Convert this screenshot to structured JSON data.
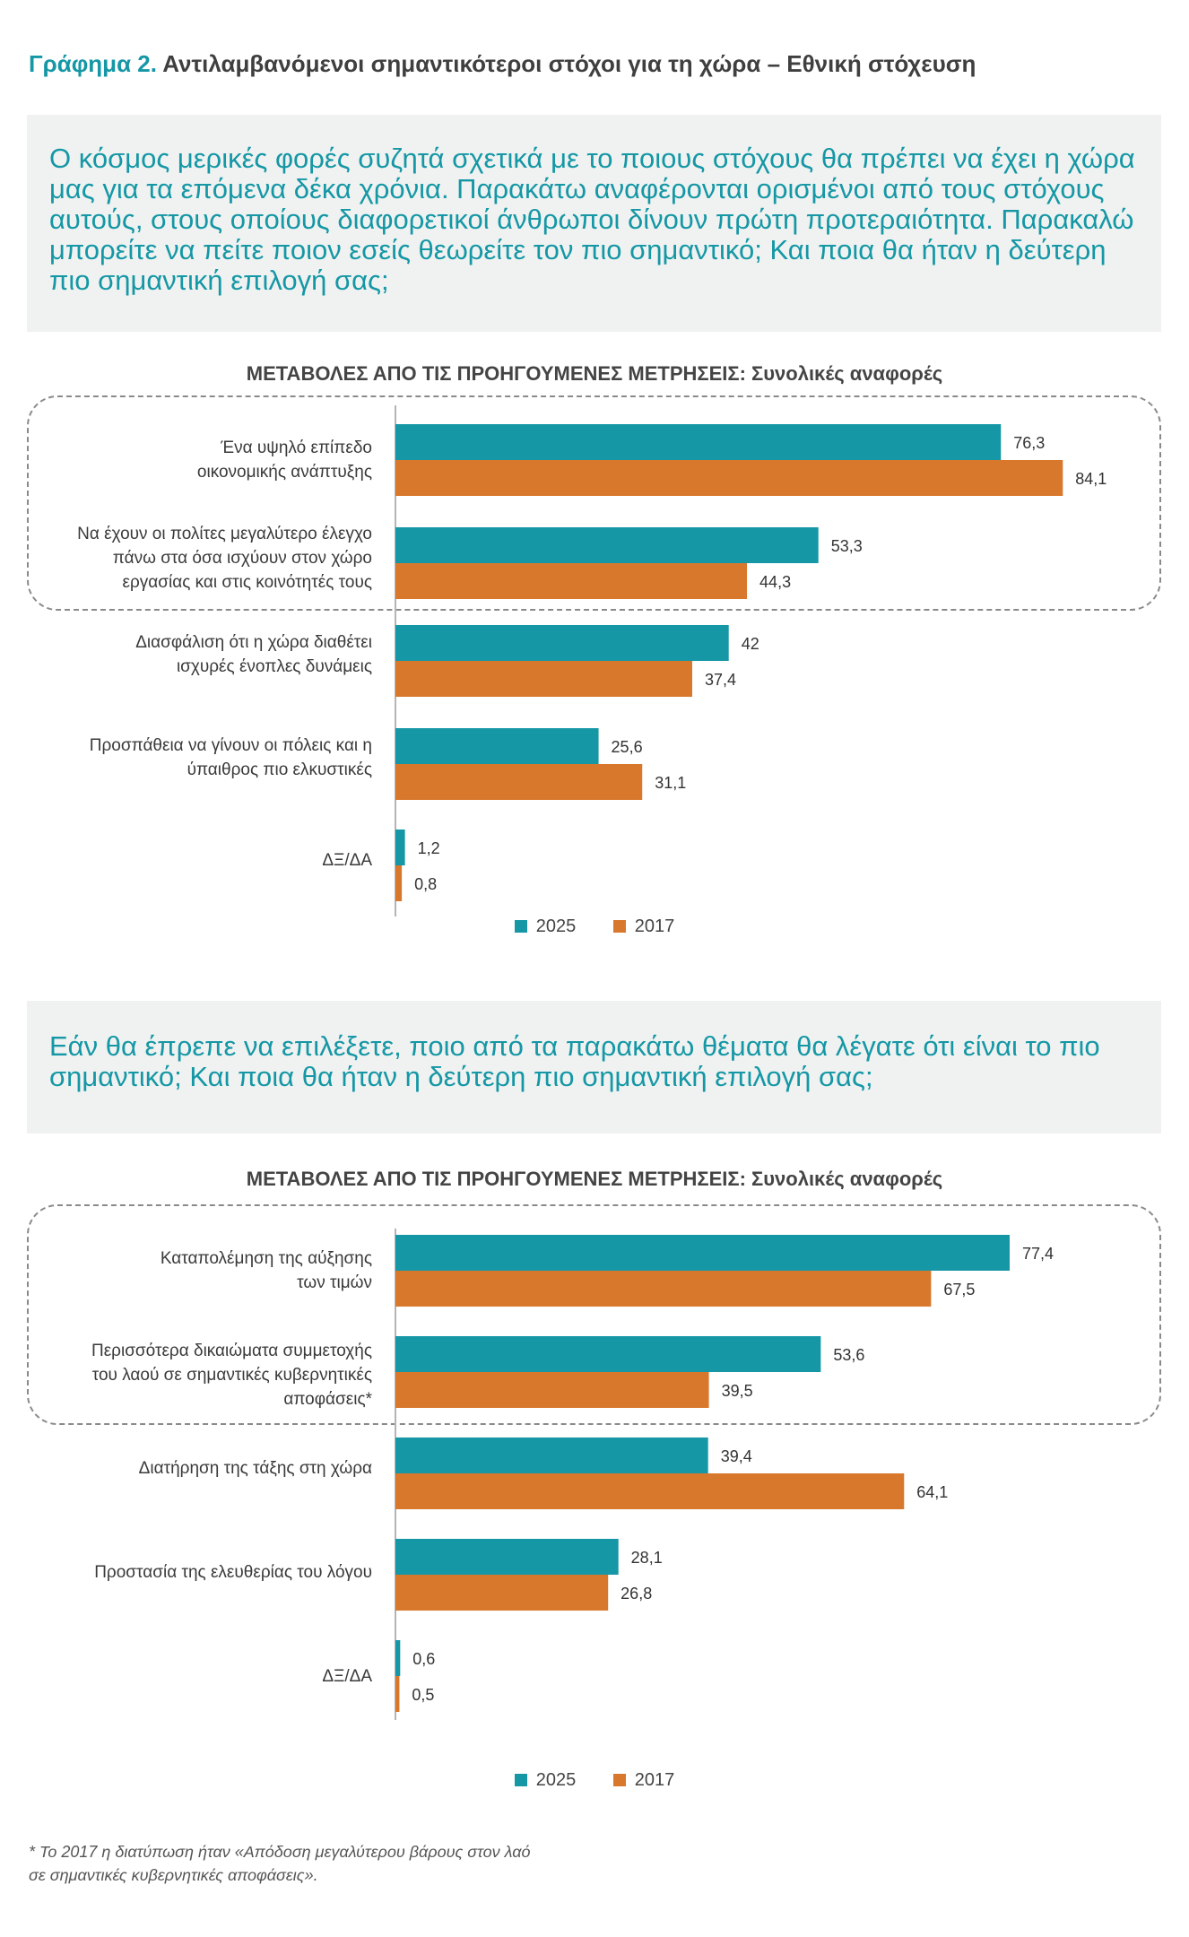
{
  "header": {
    "prefix": "Γράφημα 2.",
    "title": "Αντιλαμβανόμενοι σημαντικότεροι στόχοι για τη χώρα – Εθνική στόχευση"
  },
  "colors": {
    "y2025": "#1597a5",
    "y2017": "#d8782d",
    "axis": "#b5b5b5"
  },
  "legend": {
    "a": "2025",
    "b": "2017"
  },
  "sections": [
    {
      "question": "Ο κόσμος μερικές φορές συζητά σχετικά με το ποιους στόχους θα πρέπει να έχει η χώρα μας για τα επόμενα δέκα χρόνια. Παρακάτω αναφέρονται ορισμένοι από τους στόχους αυτούς, στους οποίους διαφορετικοί άνθρωποι δίνουν πρώτη προτεραιότητα. Παρακαλώ μπορείτε να πείτε ποιον εσείς θεωρείτε τον πιο σημαντικό; Και ποια θα ήταν η δεύτερη πιο σημαντική επιλογή σας;",
      "subtitle": "ΜΕΤΑΒΟΛΕΣ ΑΠΟ ΤΙΣ ΠΡΟΗΓΟΥΜΕΝΕΣ ΜΕΤΡΗΣΕΙΣ: Συνολικές αναφορές",
      "categories": [
        "Ένα υψηλό επίπεδο οικονομικής ανάπτυξης",
        "Να έχουν οι πολίτες μεγαλύτερο έλεγχο πάνω στα όσα ισχύουν στον χώρο εργασίας και στις κοινότητές τους",
        "Διασφάλιση ότι η χώρα διαθέτει ισχυρές ένοπλες δυνάμεις",
        "Προσπάθεια να γίνουν οι πόλεις και η ύπαιθρος πιο ελκυστικές",
        "ΔΞ/ΔΑ"
      ],
      "label_lines": [
        [
          "Ένα υψηλό επίπεδο",
          "οικονομικής ανάπτυξης"
        ],
        [
          "Να έχουν οι πολίτες μεγαλύτερο έλεγχο",
          "πάνω στα όσα ισχύουν στον χώρο",
          "εργασίας και στις κοινότητές τους"
        ],
        [
          "Διασφάλιση ότι η χώρα διαθέτει",
          "ισχυρές ένοπλες δυνάμεις"
        ],
        [
          "Προσπάθεια να γίνουν οι πόλεις και η",
          "ύπαιθρος πιο ελκυστικές"
        ],
        [
          "ΔΞ/ΔΑ"
        ]
      ],
      "value_labels_2025": [
        "76,3",
        "53,3",
        "42",
        "25,6",
        "1,2"
      ],
      "value_labels_2017": [
        "84,1",
        "44,3",
        "37,4",
        "31,1",
        "0,8"
      ]
    },
    {
      "question": "Εάν θα έπρεπε να επιλέξετε, ποιο από τα παρακάτω θέματα θα λέγατε ότι είναι το πιο σημαντικό; Και ποια θα ήταν η δεύτερη πιο σημαντική επιλογή σας;",
      "subtitle": "ΜΕΤΑΒΟΛΕΣ ΑΠΟ ΤΙΣ ΠΡΟΗΓΟΥΜΕΝΕΣ ΜΕΤΡΗΣΕΙΣ: Συνολικές αναφορές",
      "categories": [
        "Καταπολέμηση της αύξησης των τιμών",
        "Περισσότερα δικαιώματα συμμετοχής του λαού σε σημαντικές κυβερνητικές αποφάσεις*",
        "Διατήρηση της τάξης στη χώρα",
        "Προστασία της ελευθερίας του λόγου",
        "ΔΞ/ΔΑ"
      ],
      "label_lines": [
        [
          "Καταπολέμηση της αύξησης",
          "των τιμών"
        ],
        [
          "Περισσότερα δικαιώματα συμμετοχής",
          "του λαού σε σημαντικές κυβερνητικές",
          "αποφάσεις*"
        ],
        [
          "Διατήρηση της τάξης στη χώρα"
        ],
        [
          "Προστασία της ελευθερίας του λόγου"
        ],
        [
          "ΔΞ/ΔΑ"
        ]
      ],
      "value_labels_2025": [
        "77,4",
        "53,6",
        "39,4",
        "28,1",
        "0,6"
      ],
      "value_labels_2017": [
        "67,5",
        "39,5",
        "64,1",
        "26,8",
        "0,5"
      ]
    }
  ],
  "chart_data": [
    {
      "type": "bar",
      "orientation": "horizontal",
      "title": "ΜΕΤΑΒΟΛΕΣ ΑΠΟ ΤΙΣ ΠΡΟΗΓΟΥΜΕΝΕΣ ΜΕΤΡΗΣΕΙΣ: Συνολικές αναφορές",
      "categories": [
        "Ένα υψηλό επίπεδο οικονομικής ανάπτυξης",
        "Να έχουν οι πολίτες μεγαλύτερο έλεγχο πάνω στα όσα ισχύουν στον χώρο εργασίας και στις κοινότητές τους",
        "Διασφάλιση ότι η χώρα διαθέτει ισχυρές ένοπλες δυνάμεις",
        "Προσπάθεια να γίνουν οι πόλεις και η ύπαιθρος πιο ελκυστικές",
        "ΔΞ/ΔΑ"
      ],
      "series": [
        {
          "name": "2025",
          "values": [
            76.3,
            53.3,
            42,
            25.6,
            1.2
          ]
        },
        {
          "name": "2017",
          "values": [
            84.1,
            44.3,
            37.4,
            31.1,
            0.8
          ]
        }
      ],
      "legend": "bottom",
      "grid": false
    },
    {
      "type": "bar",
      "orientation": "horizontal",
      "title": "ΜΕΤΑΒΟΛΕΣ ΑΠΟ ΤΙΣ ΠΡΟΗΓΟΥΜΕΝΕΣ ΜΕΤΡΗΣΕΙΣ: Συνολικές αναφορές",
      "categories": [
        "Καταπολέμηση της αύξησης των τιμών",
        "Περισσότερα δικαιώματα συμμετοχής του λαού σε σημαντικές κυβερνητικές αποφάσεις*",
        "Διατήρηση της τάξης στη χώρα",
        "Προστασία της ελευθερίας του λόγου",
        "ΔΞ/ΔΑ"
      ],
      "series": [
        {
          "name": "2025",
          "values": [
            77.4,
            53.6,
            39.4,
            28.1,
            0.6
          ]
        },
        {
          "name": "2017",
          "values": [
            67.5,
            39.5,
            64.1,
            26.8,
            0.5
          ]
        }
      ],
      "legend": "bottom",
      "grid": false
    }
  ],
  "footnote": {
    "line1": "* Το 2017 η διατύπωση ήταν «Απόδοση μεγαλύτερου βάρους στον λαό",
    "line2": "σε σημαντικές κυβερνητικές αποφάσεις»."
  }
}
